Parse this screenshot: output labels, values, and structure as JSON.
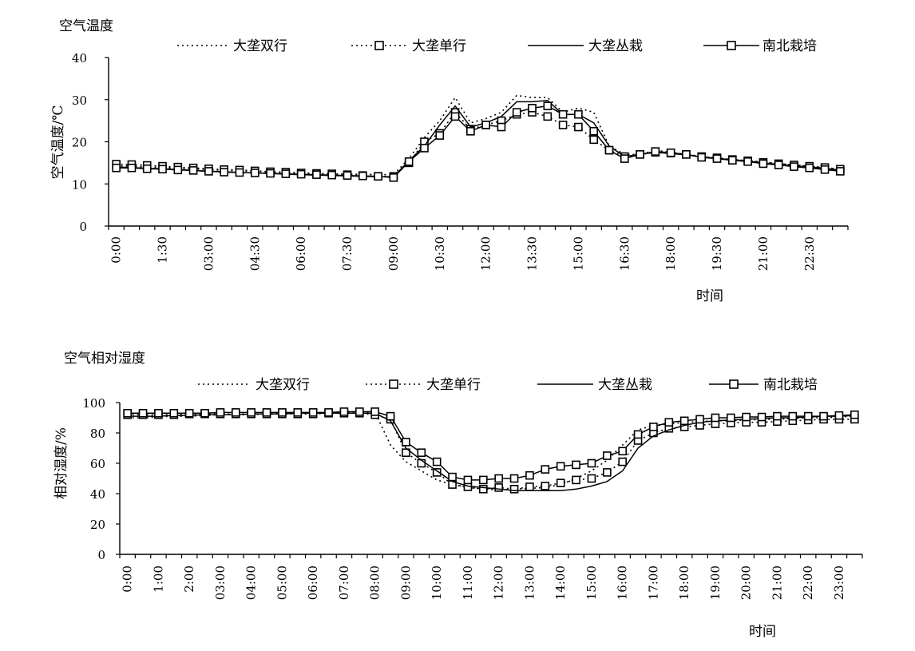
{
  "chart_data": [
    {
      "type": "line",
      "title": "空气温度",
      "ylabel": "空气温度/℃",
      "xlabel": "时间",
      "ylim": [
        0,
        40
      ],
      "yticks": [
        0,
        10,
        20,
        30,
        40
      ],
      "x_tick_labels": [
        "0:00",
        "1:30",
        "03:00",
        "04:30",
        "06:00",
        "07:30",
        "09:00",
        "10:30",
        "12:00",
        "13:30",
        "15:00",
        "16:30",
        "18:00",
        "19:30",
        "21:00",
        "22:30"
      ],
      "legend": "top",
      "series": [
        {
          "name": "大垄双行",
          "values": [
            14.3,
            14.2,
            14,
            13.9,
            13.7,
            13.6,
            13.4,
            13.2,
            13.1,
            13,
            12.8,
            12.7,
            12.6,
            12.5,
            12.4,
            12.3,
            12.3,
            12.2,
            12.2,
            16,
            21,
            25,
            30.5,
            24.5,
            25.5,
            27,
            31,
            30.5,
            30.5,
            27,
            28,
            27,
            19,
            17,
            17,
            18,
            17.5,
            17,
            16.5,
            16,
            15.8,
            15.5,
            15.2,
            14.8,
            14.5,
            14.2,
            13.8,
            13.5
          ]
        },
        {
          "name": "大垄单行",
          "values": [
            14.7,
            14.6,
            14.4,
            14.2,
            14,
            13.8,
            13.6,
            13.4,
            13.3,
            13.1,
            12.9,
            12.8,
            12.6,
            12.5,
            12.4,
            12.2,
            12,
            11.8,
            11.8,
            15,
            20,
            22,
            27,
            23,
            24,
            25,
            26.5,
            27,
            26,
            24,
            23.5,
            20.5,
            18,
            16.5,
            17,
            17.5,
            17.3,
            17,
            16.5,
            16.2,
            15.8,
            15.5,
            15.1,
            14.8,
            14.5,
            14.2,
            13.9,
            13.5
          ]
        },
        {
          "name": "大垄丛栽",
          "values": [
            14,
            13.9,
            13.7,
            13.6,
            13.4,
            13.2,
            13,
            12.9,
            12.7,
            12.6,
            12.5,
            12.3,
            12.2,
            12.1,
            12,
            11.9,
            11.8,
            11.7,
            11.7,
            15.5,
            19,
            24,
            28.5,
            23.5,
            24.5,
            26,
            29.5,
            29.5,
            29.8,
            26.5,
            26.5,
            24.5,
            19,
            16.5,
            17,
            17.5,
            17.2,
            16.9,
            16.4,
            16.1,
            15.7,
            15.4,
            15,
            14.6,
            14.3,
            14,
            13.7,
            13.2
          ]
        },
        {
          "name": "南北栽培",
          "values": [
            13.8,
            13.8,
            13.6,
            13.5,
            13.3,
            13.2,
            13,
            12.8,
            12.7,
            12.6,
            12.5,
            12.4,
            12.3,
            12.2,
            12.1,
            12,
            11.9,
            11.8,
            11.5,
            15.3,
            18.5,
            21.5,
            26,
            22.5,
            24,
            23.5,
            27,
            28,
            28.5,
            26.5,
            26.5,
            22.5,
            18,
            16,
            17,
            17.7,
            17.4,
            17,
            16.3,
            16,
            15.6,
            15.3,
            14.8,
            14.5,
            14.1,
            13.8,
            13.4,
            13
          ]
        }
      ]
    },
    {
      "type": "line",
      "title": "空气相对湿度",
      "ylabel": "相对湿度/%",
      "xlabel": "时间",
      "ylim": [
        0,
        100
      ],
      "yticks": [
        0,
        20,
        40,
        60,
        80,
        100
      ],
      "x_tick_labels": [
        "0:00",
        "1:00",
        "2:00",
        "03:00",
        "04:00",
        "05:00",
        "06:00",
        "07:00",
        "08:00",
        "09:00",
        "10:00",
        "11:00",
        "12:00",
        "13:00",
        "14:00",
        "15:00",
        "16:00",
        "17:00",
        "18:00",
        "19:00",
        "20:00",
        "21:00",
        "22:00",
        "23:00"
      ],
      "legend": "top",
      "series": [
        {
          "name": "大垄双行",
          "values": [
            90,
            90,
            90.5,
            91,
            91,
            91.5,
            92,
            92,
            92,
            92.5,
            93,
            93,
            93,
            93,
            93.5,
            93.5,
            93.5,
            72,
            61,
            55,
            49,
            46,
            44,
            43,
            42.5,
            43,
            43.5,
            44,
            46,
            50,
            55,
            62,
            72,
            82,
            85,
            86,
            87,
            87.5,
            88,
            88,
            88.5,
            89,
            89,
            89.5,
            90,
            90,
            90.5,
            91
          ]
        },
        {
          "name": "大垄单行",
          "values": [
            92,
            92,
            92,
            92,
            92.5,
            92.5,
            92.5,
            92.5,
            92.5,
            92.5,
            92.5,
            92.5,
            92.5,
            93,
            93,
            93,
            92,
            89,
            67,
            60,
            54,
            46,
            44.5,
            43,
            44,
            43,
            44.5,
            45,
            47,
            49,
            50,
            54,
            61,
            75,
            80,
            83,
            84,
            85,
            86,
            86.5,
            87,
            87,
            87.5,
            88,
            88.5,
            89,
            89,
            89
          ]
        },
        {
          "name": "大垄丛栽",
          "values": [
            91,
            91,
            91,
            91.5,
            91.5,
            92,
            92,
            92,
            92.5,
            92.5,
            92.5,
            93,
            93,
            93,
            93,
            93,
            93,
            88,
            70,
            62,
            55,
            48,
            45,
            44,
            43,
            42,
            42,
            42,
            42,
            43,
            45,
            48,
            55,
            70,
            78,
            82,
            85,
            87,
            88,
            88.5,
            89,
            89.5,
            90,
            90,
            90.5,
            91,
            91,
            91.5
          ]
        },
        {
          "name": "南北栽培",
          "values": [
            93,
            93,
            93,
            93,
            93,
            93,
            93.5,
            93.5,
            93.5,
            93.5,
            93.5,
            93.5,
            93.5,
            93.5,
            94,
            94,
            94,
            91,
            74,
            67,
            61,
            51,
            49,
            49,
            50,
            50,
            52,
            56,
            58,
            59,
            60,
            65,
            68,
            79,
            84,
            87,
            88,
            89,
            90,
            90,
            90.5,
            90.5,
            91,
            91,
            91,
            91,
            91.5,
            92
          ]
        }
      ]
    }
  ],
  "styles": {
    "line_color": "#000000",
    "legend_order": [
      "大垄双行",
      "大垄单行",
      "大垄丛栽",
      "南北栽培"
    ]
  }
}
